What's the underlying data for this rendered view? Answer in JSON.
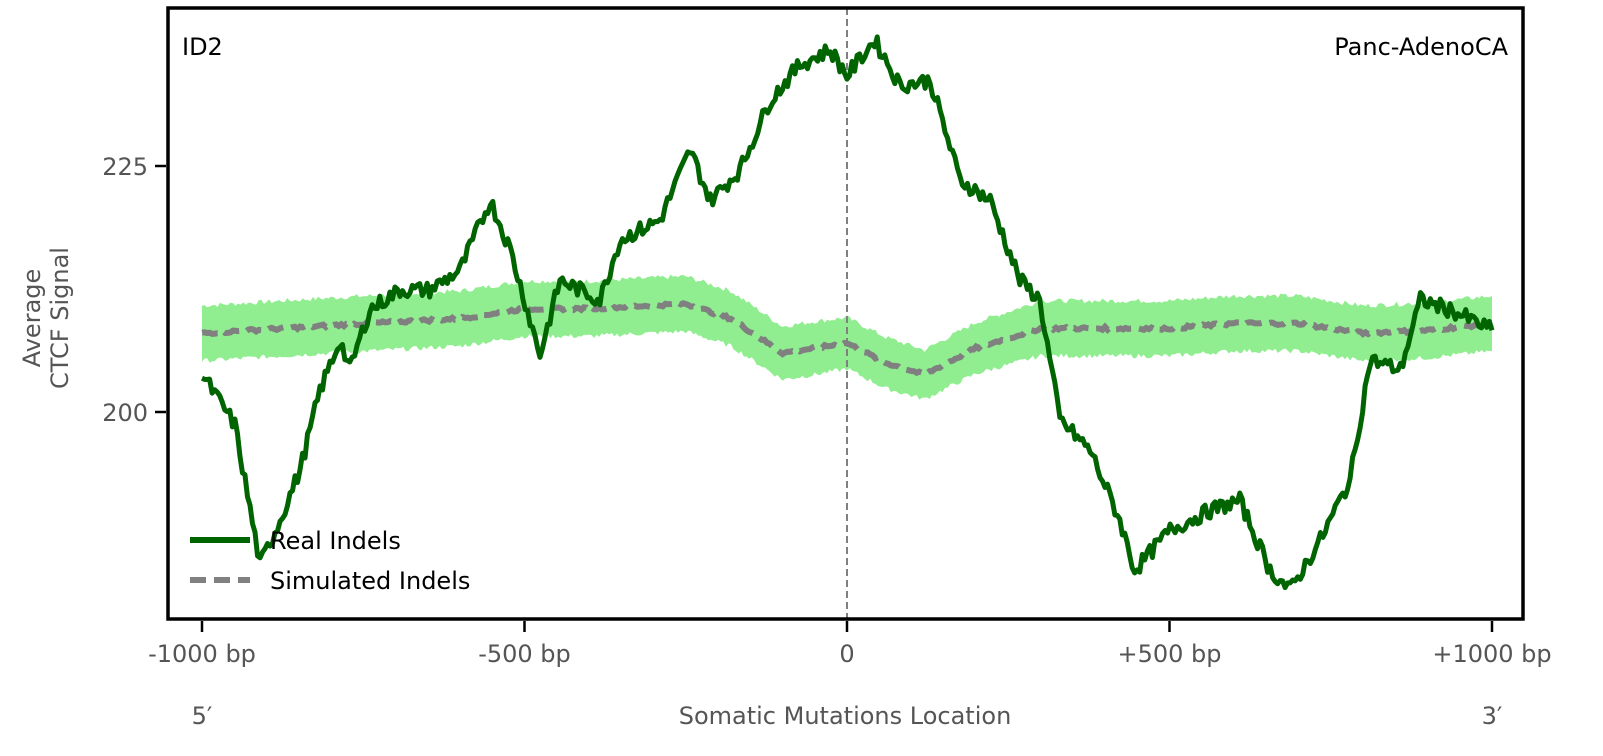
{
  "chart_data": {
    "type": "line",
    "annotation_left": "ID2",
    "annotation_right": "Panc-AdenoCA",
    "xlabel": "Somatic Mutations Location",
    "ylabel_lines": [
      "Average",
      "CTCF Signal"
    ],
    "x_end_labels": {
      "left": "5′",
      "right": "3′"
    },
    "xlim": [
      -1050,
      1050
    ],
    "ylim": [
      179,
      241.1
    ],
    "xticks": [
      {
        "value": -1000,
        "label": "-1000 bp"
      },
      {
        "value": -500,
        "label": "-500 bp"
      },
      {
        "value": 0,
        "label": "0"
      },
      {
        "value": 500,
        "label": "+500 bp"
      },
      {
        "value": 1000,
        "label": "+1000 bp"
      }
    ],
    "yticks": [
      {
        "value": 200,
        "label": "200"
      },
      {
        "value": 225,
        "label": "225"
      }
    ],
    "vline_at": 0,
    "legend": {
      "placement": "lower-left",
      "entries": [
        "Real Indels",
        "Simulated Indels"
      ]
    },
    "colors": {
      "real": "#006400",
      "simulated": "#808080",
      "band": "#90EE90",
      "vline": "#808080"
    },
    "series": [
      {
        "name": "Real Indels",
        "style": "solid",
        "x": [
          -1000,
          -949,
          -910,
          -879,
          -848,
          -817,
          -786,
          -771,
          -740,
          -693,
          -647,
          -600,
          -553,
          -522,
          -476,
          -445,
          -383,
          -352,
          -290,
          -243,
          -212,
          -166,
          -119,
          -73,
          -26,
          0,
          43,
          82,
          129,
          175,
          222,
          268,
          299,
          330,
          377,
          423,
          446,
          501,
          563,
          609,
          656,
          687,
          734,
          780,
          811,
          858,
          889,
          935,
          1000
        ],
        "y": [
          203.8,
          198.7,
          184.5,
          189,
          194.1,
          202.2,
          207.3,
          204.3,
          210.4,
          212.4,
          212.4,
          214.4,
          221.5,
          216.5,
          205.8,
          213.4,
          211.4,
          217.5,
          219.5,
          226.6,
          221.5,
          224.6,
          231.7,
          235.3,
          236.8,
          234.2,
          237.8,
          233.2,
          233.7,
          223.6,
          221.5,
          213.4,
          211.4,
          199.2,
          196.1,
          189,
          183.9,
          188,
          190,
          191,
          183.9,
          181.9,
          187,
          193.1,
          205.3,
          204.3,
          211.4,
          210.4,
          208.3
        ]
      },
      {
        "name": "Simulated Indels",
        "style": "dashed",
        "x": [
          -1000,
          -800,
          -600,
          -500,
          -400,
          -250,
          -180,
          -100,
          -50,
          0,
          60,
          120,
          200,
          300,
          400,
          500,
          600,
          700,
          800,
          900,
          1000
        ],
        "y": [
          208,
          208.8,
          209.5,
          210.5,
          210.5,
          211,
          209.5,
          206,
          206.5,
          207,
          205,
          203.8,
          206.5,
          208.5,
          208.5,
          208.5,
          209,
          209,
          208,
          208.3,
          209
        ],
        "band_half_width": [
          2.8,
          2.8,
          2.8,
          2.8,
          2.8,
          2.8,
          2.8,
          2.7,
          2.7,
          2.6,
          2.6,
          2.5,
          2.6,
          2.8,
          2.8,
          2.8,
          2.8,
          2.8,
          2.8,
          2.8,
          2.8
        ]
      }
    ]
  }
}
